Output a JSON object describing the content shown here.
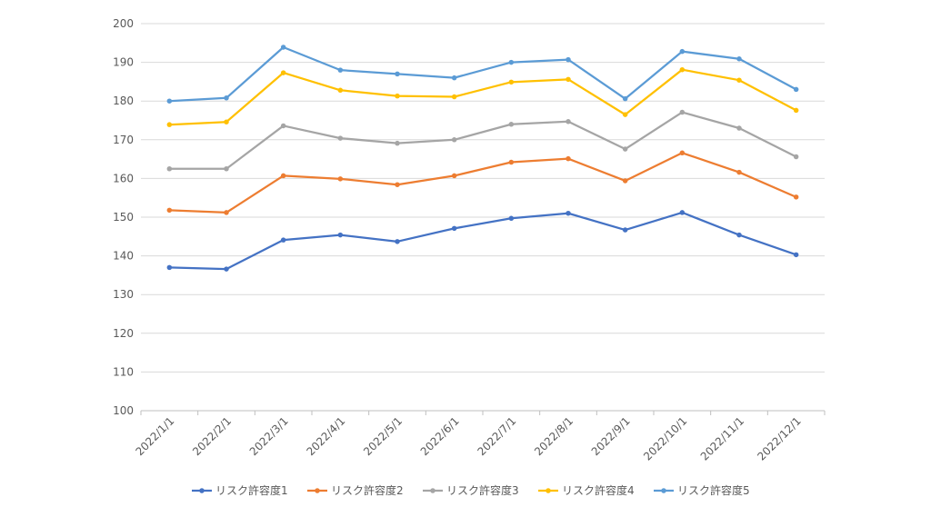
{
  "chart_data": {
    "type": "line",
    "title": "",
    "xlabel": "",
    "ylabel": "",
    "categories": [
      "2022/1/1",
      "2022/2/1",
      "2022/3/1",
      "2022/4/1",
      "2022/5/1",
      "2022/6/1",
      "2022/7/1",
      "2022/8/1",
      "2022/9/1",
      "2022/10/1",
      "2022/11/1",
      "2022/12/1"
    ],
    "ylim": [
      100,
      200
    ],
    "yticks": [
      100,
      110,
      120,
      130,
      140,
      150,
      160,
      170,
      180,
      190,
      200
    ],
    "grid": true,
    "legend": "bottom",
    "series": [
      {
        "name": "リスク許容度1",
        "color": "#4472C4",
        "values": [
          137.0,
          136.6,
          144.1,
          145.4,
          143.7,
          147.1,
          149.7,
          151.0,
          146.7,
          151.2,
          145.4,
          140.3
        ]
      },
      {
        "name": "リスク許容度2",
        "color": "#ED7D31",
        "values": [
          151.8,
          151.2,
          160.7,
          159.9,
          158.4,
          160.7,
          164.2,
          165.1,
          159.4,
          166.6,
          161.6,
          155.2
        ]
      },
      {
        "name": "リスク許容度3",
        "color": "#A5A5A5",
        "values": [
          162.5,
          162.5,
          173.6,
          170.4,
          169.1,
          170.0,
          174.0,
          174.7,
          167.6,
          177.1,
          173.0,
          165.6
        ]
      },
      {
        "name": "リスク許容度4",
        "color": "#FFC000",
        "values": [
          173.9,
          174.6,
          187.3,
          182.8,
          181.3,
          181.1,
          184.9,
          185.6,
          176.5,
          188.1,
          185.4,
          177.6
        ]
      },
      {
        "name": "リスク許容度5",
        "color": "#5B9BD5",
        "values": [
          180.0,
          180.8,
          193.9,
          188.0,
          187.0,
          186.0,
          190.0,
          190.7,
          180.6,
          192.8,
          190.9,
          183.0
        ]
      }
    ]
  }
}
